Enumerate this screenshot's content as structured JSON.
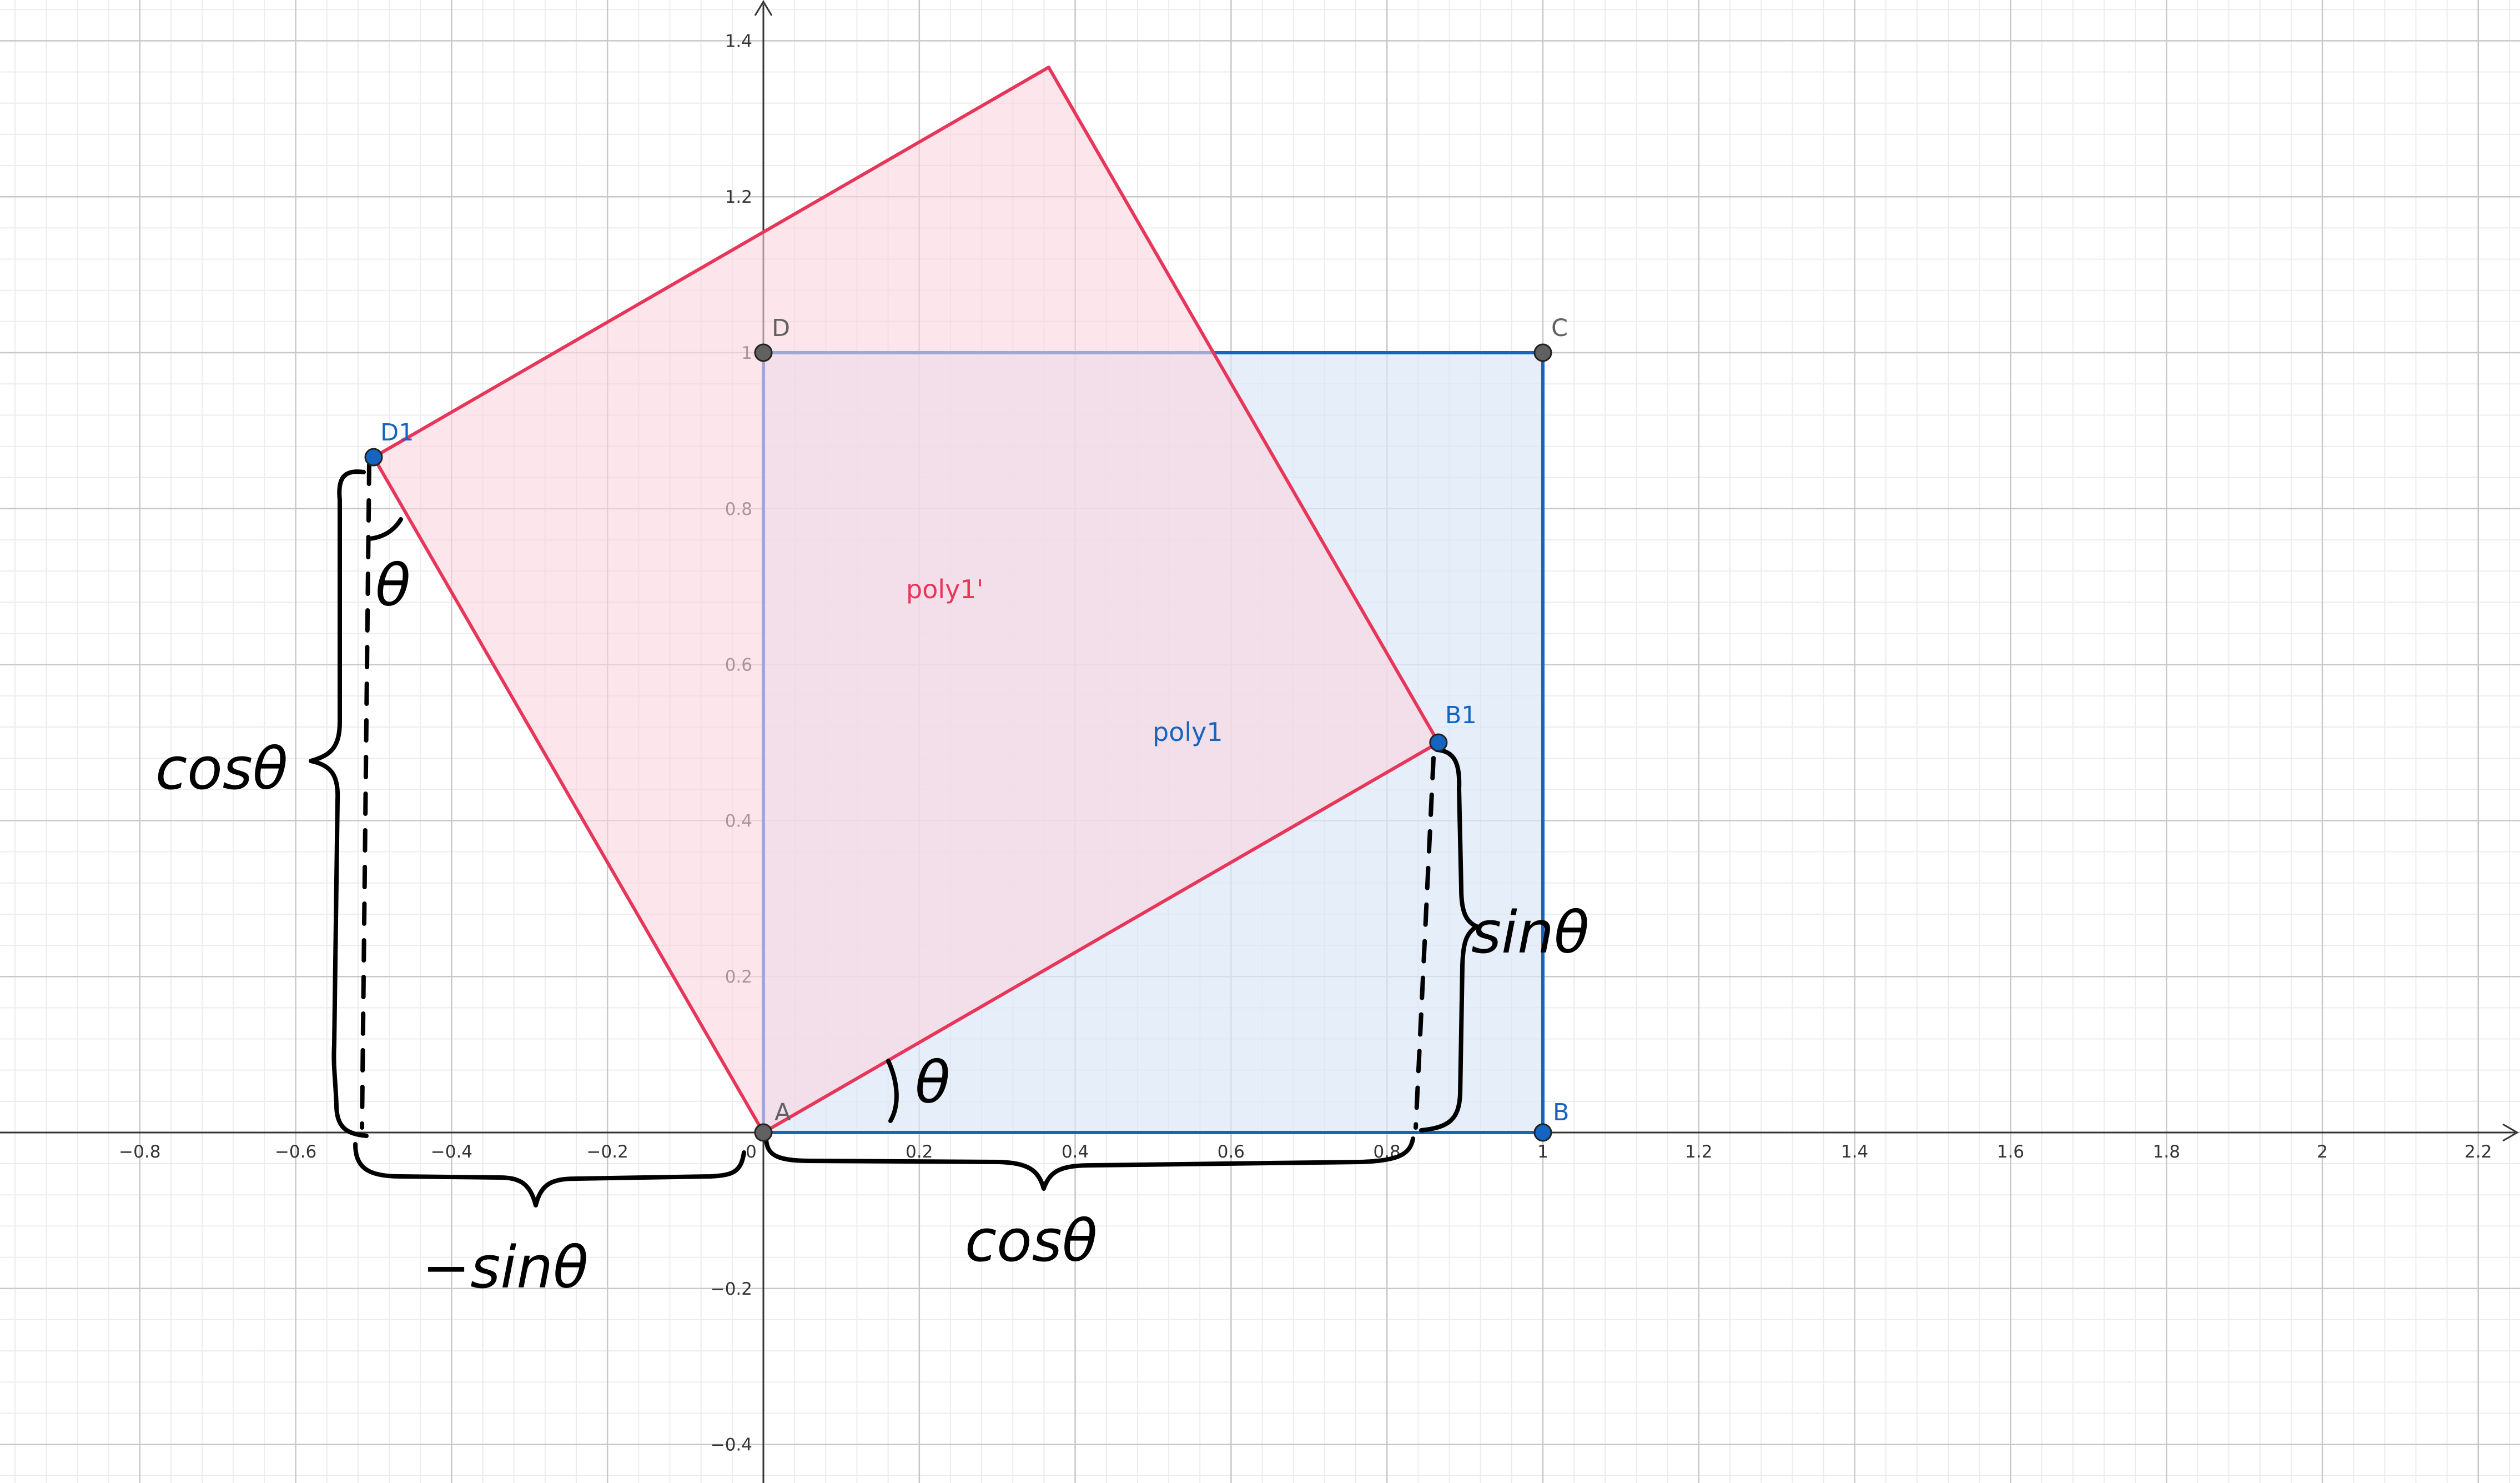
{
  "colors": {
    "blue": "#1565c0",
    "red": "#e8355a",
    "blue_fill": "#dbe7f6",
    "red_fill": "#fbd6de",
    "grid_major": "#c8c8c8",
    "grid_minor": "#ececec",
    "gray_point": "#616161",
    "hand": "#000000"
  },
  "axes": {
    "x_ticks": [
      "−0.8",
      "−0.6",
      "−0.4",
      "−0.2",
      "0",
      "0.2",
      "0.4",
      "0.6",
      "0.8",
      "1",
      "1.2",
      "1.4",
      "1.6",
      "1.8",
      "2",
      "2.2"
    ],
    "y_ticks": [
      "1.4",
      "1.2",
      "1",
      "0.8",
      "0.6",
      "0.4",
      "0.2",
      "−0.2",
      "−0.4"
    ]
  },
  "points": [
    {
      "id": "A",
      "label": "A",
      "x": 0,
      "y": 0,
      "color": "gray"
    },
    {
      "id": "B",
      "label": "B",
      "x": 1,
      "y": 0,
      "color": "blue"
    },
    {
      "id": "C",
      "label": "C",
      "x": 1,
      "y": 1,
      "color": "gray"
    },
    {
      "id": "D",
      "label": "D",
      "x": 0,
      "y": 1,
      "color": "gray"
    },
    {
      "id": "B1",
      "label": "B1",
      "x": 0.866,
      "y": 0.5,
      "color": "blue"
    },
    {
      "id": "D1",
      "label": "D1",
      "x": -0.5,
      "y": 0.866,
      "color": "blue"
    }
  ],
  "polygons": {
    "poly1": {
      "label": "poly1",
      "vertices": [
        [
          0,
          0
        ],
        [
          1,
          0
        ],
        [
          1,
          1
        ],
        [
          0,
          1
        ]
      ]
    },
    "poly1_prime": {
      "label": "poly1'",
      "vertices": [
        [
          0,
          0
        ],
        [
          0.866,
          0.5
        ],
        [
          0.366,
          1.366
        ],
        [
          -0.5,
          0.866
        ]
      ]
    }
  },
  "annotations": {
    "cos_left": "cosθ",
    "theta_top": "θ",
    "sin_right": "sinθ",
    "neg_sin_bottom": "−sinθ",
    "cos_bottom": "cosθ",
    "theta_origin": "θ"
  }
}
